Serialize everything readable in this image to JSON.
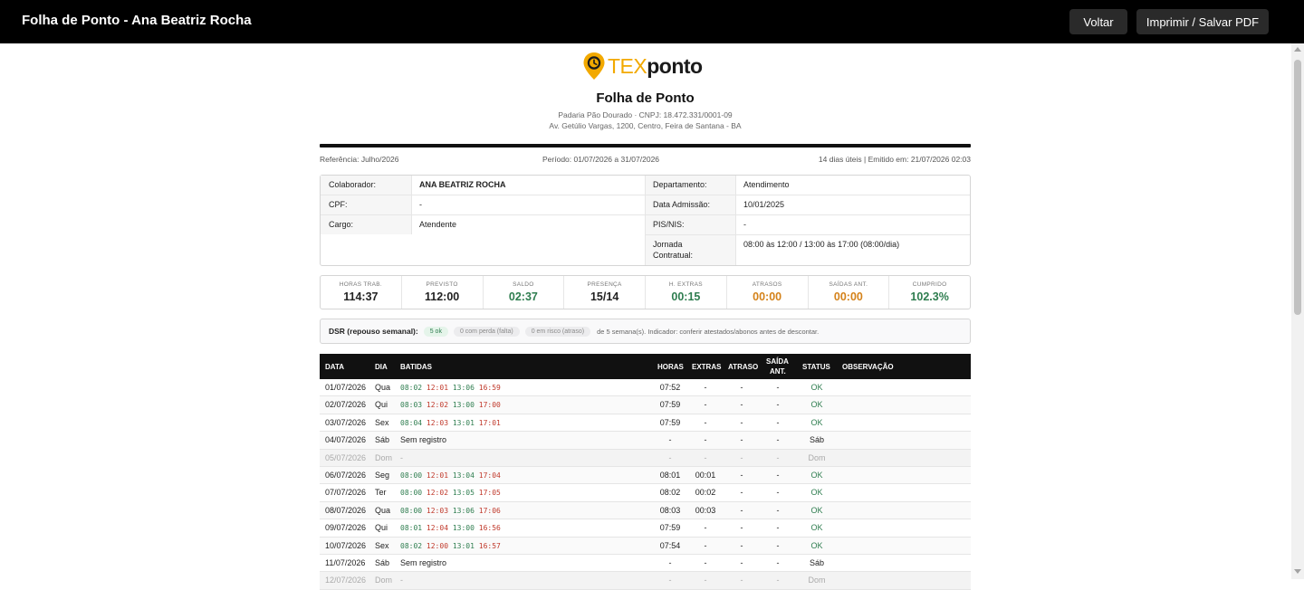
{
  "header": {
    "title": "Folha de Ponto - Ana Beatriz Rocha",
    "back_label": "Voltar",
    "print_label": "Imprimir / Salvar PDF"
  },
  "logo": {
    "part1": "TEX",
    "part2": "ponto"
  },
  "document": {
    "title": "Folha de Ponto",
    "company": "Padaria Pão Dourado · CNPJ: 18.472.331/0001-09",
    "address": "Av. Getúlio Vargas, 1200, Centro, Feira de Santana - BA",
    "reference": "Referência: Julho/2026",
    "period": "Período: 01/07/2026 a 31/07/2026",
    "issued": "14 dias úteis | Emitido em: 21/07/2026 02:03"
  },
  "employee": {
    "colaborador_label": "Colaborador:",
    "colaborador": "ANA BEATRIZ ROCHA",
    "cpf_label": "CPF:",
    "cpf": "-",
    "cargo_label": "Cargo:",
    "cargo": "Atendente",
    "departamento_label": "Departamento:",
    "departamento": "Atendimento",
    "admissao_label": "Data Admissão:",
    "admissao": "10/01/2025",
    "pis_label": "PIS/NIS:",
    "pis": "-",
    "jornada_label_1": "Jornada",
    "jornada_label_2": "Contratual:",
    "jornada": "08:00 às 12:00 / 13:00 às 17:00 (08:00/dia)"
  },
  "stats": [
    {
      "label": "HORAS TRAB.",
      "value": "114:37",
      "color": "#222222"
    },
    {
      "label": "PREVISTO",
      "value": "112:00",
      "color": "#222222"
    },
    {
      "label": "SALDO",
      "value": "02:37",
      "color": "#2e7d4f"
    },
    {
      "label": "PRESENÇA",
      "value": "15/14",
      "color": "#222222"
    },
    {
      "label": "H. EXTRAS",
      "value": "00:15",
      "color": "#2e7d4f"
    },
    {
      "label": "ATRASOS",
      "value": "00:00",
      "color": "#d4821a"
    },
    {
      "label": "SAÍDAS ANT.",
      "value": "00:00",
      "color": "#d4821a"
    },
    {
      "label": "CUMPRIDO",
      "value": "102.3%",
      "color": "#2e7d4f"
    }
  ],
  "dsr": {
    "label": "DSR (repouso semanal):",
    "ok": "5 ok",
    "perda": "0 com perda (falta)",
    "risco": "0 em risco (atraso)",
    "note": "de 5 semana(s). Indicador: conferir atestados/abonos antes de descontar."
  },
  "table": {
    "headers": {
      "data": "DATA",
      "dia": "DIA",
      "batidas": "BATIDAS",
      "horas": "HORAS",
      "extras": "EXTRAS",
      "atraso": "ATRASO",
      "saida_1": "SAÍDA",
      "saida_2": "ANT.",
      "status": "STATUS",
      "obs": "OBSERVAÇÃO"
    },
    "rows": [
      {
        "data": "01/07/2026",
        "dia": "Qua",
        "b1": "08:02",
        "b2": "12:01",
        "b3": "13:06",
        "b4": "16:59",
        "text": "",
        "horas": "07:52",
        "extras": "-",
        "atraso": "-",
        "saida": "-",
        "status": "OK",
        "obs": ""
      },
      {
        "data": "02/07/2026",
        "dia": "Qui",
        "b1": "08:03",
        "b2": "12:02",
        "b3": "13:00",
        "b4": "17:00",
        "text": "",
        "horas": "07:59",
        "extras": "-",
        "atraso": "-",
        "saida": "-",
        "status": "OK",
        "obs": ""
      },
      {
        "data": "03/07/2026",
        "dia": "Sex",
        "b1": "08:04",
        "b2": "12:03",
        "b3": "13:01",
        "b4": "17:01",
        "text": "",
        "horas": "07:59",
        "extras": "-",
        "atraso": "-",
        "saida": "-",
        "status": "OK",
        "obs": ""
      },
      {
        "data": "04/07/2026",
        "dia": "Sáb",
        "b1": "",
        "b2": "",
        "b3": "",
        "b4": "",
        "text": "Sem registro",
        "horas": "-",
        "extras": "-",
        "atraso": "-",
        "saida": "-",
        "status": "Sáb",
        "obs": ""
      },
      {
        "data": "05/07/2026",
        "dia": "Dom",
        "b1": "",
        "b2": "",
        "b3": "",
        "b4": "",
        "text": "-",
        "horas": "-",
        "extras": "-",
        "atraso": "-",
        "saida": "-",
        "status": "Dom",
        "obs": ""
      },
      {
        "data": "06/07/2026",
        "dia": "Seg",
        "b1": "08:00",
        "b2": "12:01",
        "b3": "13:04",
        "b4": "17:04",
        "text": "",
        "horas": "08:01",
        "extras": "00:01",
        "atraso": "-",
        "saida": "-",
        "status": "OK",
        "obs": ""
      },
      {
        "data": "07/07/2026",
        "dia": "Ter",
        "b1": "08:00",
        "b2": "12:02",
        "b3": "13:05",
        "b4": "17:05",
        "text": "",
        "horas": "08:02",
        "extras": "00:02",
        "atraso": "-",
        "saida": "-",
        "status": "OK",
        "obs": ""
      },
      {
        "data": "08/07/2026",
        "dia": "Qua",
        "b1": "08:00",
        "b2": "12:03",
        "b3": "13:06",
        "b4": "17:06",
        "text": "",
        "horas": "08:03",
        "extras": "00:03",
        "atraso": "-",
        "saida": "-",
        "status": "OK",
        "obs": ""
      },
      {
        "data": "09/07/2026",
        "dia": "Qui",
        "b1": "08:01",
        "b2": "12:04",
        "b3": "13:00",
        "b4": "16:56",
        "text": "",
        "horas": "07:59",
        "extras": "-",
        "atraso": "-",
        "saida": "-",
        "status": "OK",
        "obs": ""
      },
      {
        "data": "10/07/2026",
        "dia": "Sex",
        "b1": "08:02",
        "b2": "12:00",
        "b3": "13:01",
        "b4": "16:57",
        "text": "",
        "horas": "07:54",
        "extras": "-",
        "atraso": "-",
        "saida": "-",
        "status": "OK",
        "obs": ""
      },
      {
        "data": "11/07/2026",
        "dia": "Sáb",
        "b1": "",
        "b2": "",
        "b3": "",
        "b4": "",
        "text": "Sem registro",
        "horas": "-",
        "extras": "-",
        "atraso": "-",
        "saida": "-",
        "status": "Sáb",
        "obs": ""
      },
      {
        "data": "12/07/2026",
        "dia": "Dom",
        "b1": "",
        "b2": "",
        "b3": "",
        "b4": "",
        "text": "-",
        "horas": "-",
        "extras": "-",
        "atraso": "-",
        "saida": "-",
        "status": "Dom",
        "obs": ""
      }
    ]
  },
  "colors": {
    "ok": "#2e7d4f",
    "exit": "#c0392b",
    "brand": "#f2a900"
  },
  "icons": {
    "logo": "location-pin-clock-icon"
  }
}
